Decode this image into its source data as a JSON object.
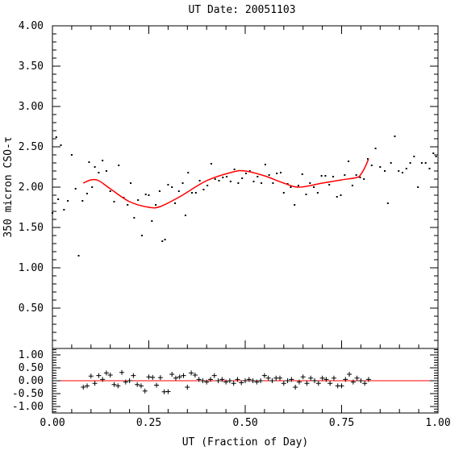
{
  "chart_data": {
    "title": "UT Date: 20051103",
    "xlabel": "UT (Fraction of Day)",
    "ylabel": "350 micron CSO-τ",
    "xlim": [
      0,
      1
    ],
    "top_panel": {
      "type": "scatter",
      "ylim": [
        0,
        4
      ],
      "yticks": [
        "0.50",
        "1.00",
        "1.50",
        "2.00",
        "2.50",
        "3.00",
        "3.50",
        "4.00"
      ],
      "point_color": "#000000",
      "fit_color": "#ff0000",
      "points": [
        [
          0.0,
          1.68
        ],
        [
          0.01,
          2.62
        ],
        [
          0.015,
          1.85
        ],
        [
          0.022,
          2.52
        ],
        [
          0.03,
          1.72
        ],
        [
          0.04,
          1.83
        ],
        [
          0.05,
          2.4
        ],
        [
          0.06,
          1.98
        ],
        [
          0.068,
          1.15
        ],
        [
          0.078,
          1.83
        ],
        [
          0.09,
          1.92
        ],
        [
          0.095,
          2.31
        ],
        [
          0.103,
          2.0
        ],
        [
          0.11,
          2.25
        ],
        [
          0.12,
          2.18
        ],
        [
          0.13,
          2.33
        ],
        [
          0.14,
          2.2
        ],
        [
          0.15,
          1.95
        ],
        [
          0.16,
          1.82
        ],
        [
          0.172,
          2.27
        ],
        [
          0.185,
          1.87
        ],
        [
          0.195,
          1.78
        ],
        [
          0.203,
          2.05
        ],
        [
          0.212,
          1.62
        ],
        [
          0.222,
          1.84
        ],
        [
          0.232,
          1.4
        ],
        [
          0.242,
          1.91
        ],
        [
          0.25,
          1.9
        ],
        [
          0.258,
          1.58
        ],
        [
          0.268,
          1.78
        ],
        [
          0.278,
          1.95
        ],
        [
          0.285,
          1.33
        ],
        [
          0.292,
          1.35
        ],
        [
          0.3,
          2.03
        ],
        [
          0.31,
          2.0
        ],
        [
          0.318,
          1.8
        ],
        [
          0.328,
          1.95
        ],
        [
          0.338,
          2.05
        ],
        [
          0.345,
          1.65
        ],
        [
          0.352,
          2.18
        ],
        [
          0.362,
          1.93
        ],
        [
          0.372,
          1.93
        ],
        [
          0.382,
          2.08
        ],
        [
          0.392,
          1.97
        ],
        [
          0.402,
          2.02
        ],
        [
          0.412,
          2.29
        ],
        [
          0.422,
          2.1
        ],
        [
          0.432,
          2.08
        ],
        [
          0.442,
          2.12
        ],
        [
          0.452,
          2.13
        ],
        [
          0.462,
          2.07
        ],
        [
          0.472,
          2.22
        ],
        [
          0.482,
          2.05
        ],
        [
          0.492,
          2.11
        ],
        [
          0.502,
          2.17
        ],
        [
          0.512,
          2.2
        ],
        [
          0.522,
          2.07
        ],
        [
          0.532,
          2.13
        ],
        [
          0.542,
          2.05
        ],
        [
          0.552,
          2.28
        ],
        [
          0.562,
          2.15
        ],
        [
          0.572,
          2.05
        ],
        [
          0.582,
          2.17
        ],
        [
          0.592,
          2.18
        ],
        [
          0.6,
          1.93
        ],
        [
          0.61,
          2.04
        ],
        [
          0.618,
          2.0
        ],
        [
          0.628,
          1.78
        ],
        [
          0.638,
          2.02
        ],
        [
          0.648,
          2.16
        ],
        [
          0.658,
          1.91
        ],
        [
          0.668,
          2.05
        ],
        [
          0.678,
          2.0
        ],
        [
          0.688,
          1.93
        ],
        [
          0.698,
          2.14
        ],
        [
          0.708,
          2.14
        ],
        [
          0.718,
          2.03
        ],
        [
          0.728,
          2.13
        ],
        [
          0.738,
          1.88
        ],
        [
          0.748,
          1.9
        ],
        [
          0.758,
          2.15
        ],
        [
          0.768,
          2.32
        ],
        [
          0.778,
          2.02
        ],
        [
          0.788,
          2.15
        ],
        [
          0.798,
          2.12
        ],
        [
          0.808,
          2.1
        ],
        [
          0.818,
          2.35
        ],
        [
          0.828,
          2.27
        ],
        [
          0.838,
          2.48
        ],
        [
          0.85,
          2.25
        ],
        [
          0.862,
          2.2
        ],
        [
          0.87,
          1.8
        ],
        [
          0.878,
          2.3
        ],
        [
          0.888,
          2.63
        ],
        [
          0.898,
          2.2
        ],
        [
          0.908,
          2.18
        ],
        [
          0.918,
          2.23
        ],
        [
          0.928,
          2.3
        ],
        [
          0.938,
          2.38
        ],
        [
          0.948,
          2.0
        ],
        [
          0.958,
          2.3
        ],
        [
          0.968,
          2.3
        ],
        [
          0.978,
          2.23
        ],
        [
          0.988,
          2.42
        ],
        [
          0.995,
          2.38
        ]
      ],
      "fit_range": [
        0.08,
        0.82
      ],
      "fit_nodes": [
        [
          0.08,
          2.05
        ],
        [
          0.1,
          2.09
        ],
        [
          0.12,
          2.08
        ],
        [
          0.15,
          1.98
        ],
        [
          0.2,
          1.82
        ],
        [
          0.25,
          1.75
        ],
        [
          0.28,
          1.76
        ],
        [
          0.33,
          1.88
        ],
        [
          0.4,
          2.08
        ],
        [
          0.47,
          2.19
        ],
        [
          0.5,
          2.2
        ],
        [
          0.55,
          2.14
        ],
        [
          0.6,
          2.05
        ],
        [
          0.64,
          2.0
        ],
        [
          0.7,
          2.05
        ],
        [
          0.75,
          2.09
        ],
        [
          0.79,
          2.12
        ],
        [
          0.8,
          2.16
        ],
        [
          0.81,
          2.24
        ],
        [
          0.82,
          2.35
        ]
      ]
    },
    "bottom_panel": {
      "type": "scatter",
      "ylim": [
        -1.25,
        1.25
      ],
      "yticks": [
        "-1.00",
        "-0.50",
        "0.00",
        "0.50",
        "1.00"
      ],
      "zero_line_color": "#ff0000",
      "residuals": [
        [
          0.08,
          -0.25
        ],
        [
          0.09,
          -0.2
        ],
        [
          0.1,
          0.18
        ],
        [
          0.11,
          -0.1
        ],
        [
          0.12,
          0.2
        ],
        [
          0.13,
          0.05
        ],
        [
          0.14,
          0.3
        ],
        [
          0.15,
          0.22
        ],
        [
          0.16,
          -0.15
        ],
        [
          0.17,
          -0.2
        ],
        [
          0.18,
          0.32
        ],
        [
          0.19,
          -0.05
        ],
        [
          0.2,
          0.0
        ],
        [
          0.21,
          0.2
        ],
        [
          0.22,
          -0.15
        ],
        [
          0.23,
          -0.2
        ],
        [
          0.24,
          -0.4
        ],
        [
          0.25,
          0.15
        ],
        [
          0.26,
          0.13
        ],
        [
          0.27,
          -0.17
        ],
        [
          0.28,
          0.12
        ],
        [
          0.29,
          -0.43
        ],
        [
          0.3,
          -0.42
        ],
        [
          0.31,
          0.25
        ],
        [
          0.32,
          0.1
        ],
        [
          0.33,
          0.15
        ],
        [
          0.34,
          0.2
        ],
        [
          0.35,
          -0.25
        ],
        [
          0.36,
          0.3
        ],
        [
          0.37,
          0.22
        ],
        [
          0.38,
          0.05
        ],
        [
          0.39,
          0.0
        ],
        [
          0.4,
          -0.05
        ],
        [
          0.41,
          0.05
        ],
        [
          0.42,
          0.2
        ],
        [
          0.43,
          0.0
        ],
        [
          0.44,
          0.05
        ],
        [
          0.45,
          -0.05
        ],
        [
          0.46,
          0.0
        ],
        [
          0.47,
          -0.1
        ],
        [
          0.48,
          0.05
        ],
        [
          0.49,
          -0.08
        ],
        [
          0.5,
          0.0
        ],
        [
          0.51,
          0.05
        ],
        [
          0.52,
          0.0
        ],
        [
          0.53,
          -0.05
        ],
        [
          0.54,
          0.0
        ],
        [
          0.55,
          0.2
        ],
        [
          0.56,
          0.1
        ],
        [
          0.57,
          0.0
        ],
        [
          0.58,
          0.1
        ],
        [
          0.59,
          0.1
        ],
        [
          0.6,
          -0.1
        ],
        [
          0.61,
          0.0
        ],
        [
          0.62,
          0.05
        ],
        [
          0.63,
          -0.25
        ],
        [
          0.64,
          -0.05
        ],
        [
          0.65,
          0.15
        ],
        [
          0.66,
          -0.1
        ],
        [
          0.67,
          0.1
        ],
        [
          0.68,
          0.0
        ],
        [
          0.69,
          -0.1
        ],
        [
          0.7,
          0.1
        ],
        [
          0.71,
          0.05
        ],
        [
          0.72,
          -0.1
        ],
        [
          0.73,
          0.1
        ],
        [
          0.74,
          -0.2
        ],
        [
          0.75,
          -0.2
        ],
        [
          0.76,
          0.05
        ],
        [
          0.77,
          0.25
        ],
        [
          0.78,
          -0.05
        ],
        [
          0.79,
          0.1
        ],
        [
          0.8,
          0.0
        ],
        [
          0.81,
          -0.1
        ],
        [
          0.82,
          0.05
        ]
      ]
    }
  }
}
